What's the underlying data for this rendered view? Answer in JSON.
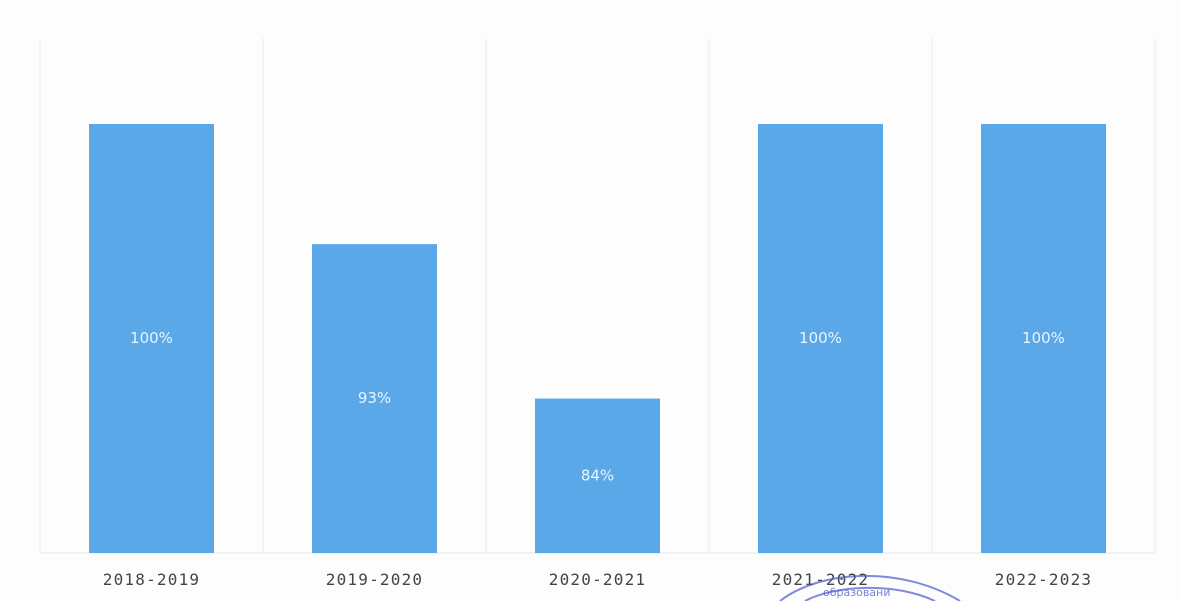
{
  "chart_data": {
    "type": "bar",
    "categories": [
      "2018-2019",
      "2019-2020",
      "2020-2021",
      "2021-2022",
      "2022-2023"
    ],
    "values": [
      100,
      93,
      84,
      100,
      100
    ],
    "data_labels": [
      "100%",
      "93%",
      "84%",
      "100%",
      "100%"
    ],
    "ylim": [
      75,
      100
    ],
    "grid": true,
    "legend": "none",
    "title": "",
    "xlabel": "",
    "ylabel": "",
    "bar_color": "#5aa8e8"
  },
  "stamp": {
    "text": "образовани"
  }
}
